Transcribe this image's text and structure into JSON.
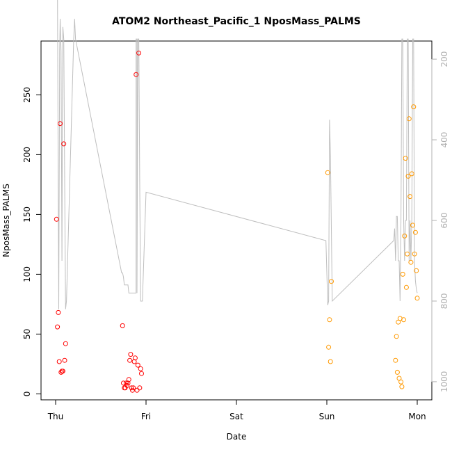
{
  "chart_data": {
    "type": "scatter",
    "title": "ATOM2 Northeast_Pacific_1 NposMass_PALMS",
    "xlabel": "Date",
    "ylabel": "NposMass_PALMS",
    "x_ticks": [
      "Thu",
      "Fri",
      "Sat",
      "Sun",
      "Mon"
    ],
    "x_tick_values": [
      0,
      1,
      2,
      3,
      4
    ],
    "ylim": [
      -5,
      295
    ],
    "y_ticks": [
      0,
      50,
      100,
      150,
      200,
      250
    ],
    "y2_ticks": [
      200,
      400,
      600,
      800,
      1000
    ],
    "y2lim": [
      155,
      1045
    ],
    "y2_reversed": true,
    "grid": false,
    "colors": {
      "first_leg": "#ff0000",
      "second_leg": "#ff9900",
      "altitude_line": "#bebebe",
      "axis": "#000000",
      "secondary_axis": "#b0b0b0"
    },
    "series": [
      {
        "color": "#ff0000",
        "points": [
          [
            0.01,
            146
          ],
          [
            0.02,
            56
          ],
          [
            0.03,
            68
          ],
          [
            0.04,
            27
          ],
          [
            0.05,
            226
          ],
          [
            0.06,
            18
          ],
          [
            0.07,
            19
          ],
          [
            0.08,
            19
          ],
          [
            0.09,
            209
          ],
          [
            0.1,
            28
          ],
          [
            0.11,
            42
          ],
          [
            0.74,
            57
          ],
          [
            0.75,
            9
          ],
          [
            0.76,
            5
          ],
          [
            0.77,
            5
          ],
          [
            0.78,
            9
          ],
          [
            0.79,
            7
          ],
          [
            0.8,
            9
          ],
          [
            0.81,
            12
          ],
          [
            0.82,
            28
          ],
          [
            0.83,
            33
          ],
          [
            0.84,
            5
          ],
          [
            0.85,
            3
          ],
          [
            0.86,
            5
          ],
          [
            0.87,
            27
          ],
          [
            0.88,
            30
          ],
          [
            0.89,
            267
          ],
          [
            0.9,
            3
          ],
          [
            0.91,
            24
          ],
          [
            0.92,
            285
          ],
          [
            0.93,
            5
          ],
          [
            0.94,
            21
          ],
          [
            0.95,
            17
          ]
        ]
      },
      {
        "color": "#ff9900",
        "points": [
          [
            3.01,
            185
          ],
          [
            3.02,
            39
          ],
          [
            3.03,
            62
          ],
          [
            3.04,
            27
          ],
          [
            3.05,
            94
          ],
          [
            3.76,
            28
          ],
          [
            3.77,
            48
          ],
          [
            3.78,
            18
          ],
          [
            3.79,
            60
          ],
          [
            3.8,
            13
          ],
          [
            3.81,
            63
          ],
          [
            3.82,
            10
          ],
          [
            3.83,
            6
          ],
          [
            3.84,
            100
          ],
          [
            3.85,
            62
          ],
          [
            3.86,
            132
          ],
          [
            3.87,
            197
          ],
          [
            3.88,
            89
          ],
          [
            3.89,
            117
          ],
          [
            3.9,
            182
          ],
          [
            3.91,
            230
          ],
          [
            3.92,
            165
          ],
          [
            3.93,
            110
          ],
          [
            3.94,
            184
          ],
          [
            3.95,
            141
          ],
          [
            3.96,
            240
          ],
          [
            3.97,
            117
          ],
          [
            3.98,
            135
          ],
          [
            3.99,
            103
          ],
          [
            4.0,
            80
          ]
        ]
      }
    ],
    "altitude_line": [
      [
        0.0,
        0
      ],
      [
        0.02,
        0
      ],
      [
        0.03,
        600
      ],
      [
        0.035,
        820
      ],
      [
        0.045,
        180
      ],
      [
        0.05,
        100
      ],
      [
        0.06,
        180
      ],
      [
        0.07,
        700
      ],
      [
        0.075,
        300
      ],
      [
        0.08,
        120
      ],
      [
        0.09,
        150
      ],
      [
        0.1,
        500
      ],
      [
        0.11,
        820
      ],
      [
        0.12,
        800
      ],
      [
        0.2,
        150
      ],
      [
        0.21,
        100
      ],
      [
        0.22,
        150
      ],
      [
        0.73,
        730
      ],
      [
        0.74,
        730
      ],
      [
        0.75,
        740
      ],
      [
        0.76,
        760
      ],
      [
        0.77,
        760
      ],
      [
        0.8,
        760
      ],
      [
        0.81,
        780
      ],
      [
        0.85,
        780
      ],
      [
        0.89,
        780
      ],
      [
        0.89,
        150
      ],
      [
        0.9,
        150
      ],
      [
        0.9,
        780
      ],
      [
        0.91,
        150
      ],
      [
        0.92,
        150
      ],
      [
        0.93,
        500
      ],
      [
        0.94,
        800
      ],
      [
        0.95,
        800
      ],
      [
        0.96,
        800
      ],
      [
        1.0,
        530
      ],
      [
        2.99,
        650
      ],
      [
        3.01,
        810
      ],
      [
        3.02,
        800
      ],
      [
        3.03,
        350
      ],
      [
        3.04,
        440
      ],
      [
        3.06,
        800
      ],
      [
        3.74,
        650
      ],
      [
        3.75,
        620
      ],
      [
        3.76,
        700
      ],
      [
        3.77,
        590
      ],
      [
        3.78,
        590
      ],
      [
        3.79,
        700
      ],
      [
        3.8,
        700
      ],
      [
        3.81,
        800
      ],
      [
        3.82,
        600
      ],
      [
        3.83,
        150
      ],
      [
        3.84,
        150
      ],
      [
        3.85,
        600
      ],
      [
        3.86,
        700
      ],
      [
        3.87,
        600
      ],
      [
        3.88,
        600
      ],
      [
        3.89,
        150
      ],
      [
        3.9,
        150
      ],
      [
        3.91,
        700
      ],
      [
        3.92,
        600
      ],
      [
        3.93,
        700
      ],
      [
        3.94,
        600
      ],
      [
        3.95,
        150
      ],
      [
        3.96,
        150
      ],
      [
        3.97,
        700
      ],
      [
        3.98,
        750
      ],
      [
        3.99,
        770
      ],
      [
        4.0,
        780
      ]
    ]
  }
}
